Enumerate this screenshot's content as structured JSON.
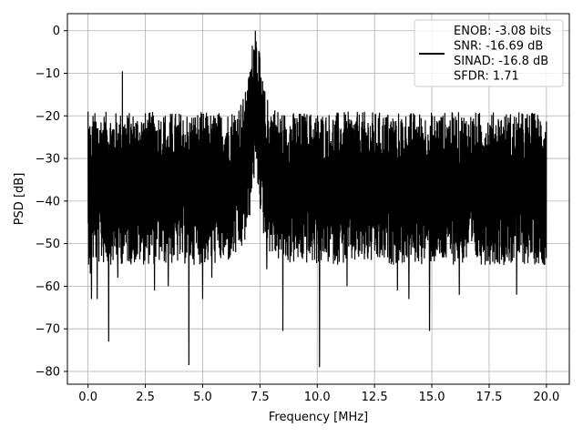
{
  "chart_data": {
    "type": "line",
    "title": "",
    "xlabel": "Frequency [MHz]",
    "ylabel": "PSD [dB]",
    "xlim": [
      -0.9,
      21.0
    ],
    "ylim": [
      -83.0,
      4.0
    ],
    "xticks": [
      0.0,
      2.5,
      5.0,
      7.5,
      10.0,
      12.5,
      15.0,
      17.5,
      20.0
    ],
    "xtick_labels": [
      "0.0",
      "2.5",
      "5.0",
      "7.5",
      "10.0",
      "12.5",
      "15.0",
      "17.5",
      "20.0"
    ],
    "yticks": [
      0,
      -10,
      -20,
      -30,
      -40,
      -50,
      -60,
      -70,
      -80
    ],
    "ytick_labels": [
      "0",
      "−10",
      "−20",
      "−30",
      "−40",
      "−50",
      "−60",
      "−70",
      "−80"
    ],
    "grid": true,
    "legend": {
      "placement": "top-right",
      "entries": [
        "ENOB: -3.08 bits",
        "SNR: -16.69 dB",
        "SINAD: -16.8 dB",
        "SFDR: 1.71"
      ]
    },
    "series": [
      {
        "color": "#000000",
        "x_range": [
          0.0,
          20.0
        ],
        "noise_floor_db": -37,
        "noise_high_db": -26,
        "noise_low_db": -50,
        "peaks": [
          {
            "x": 0.0,
            "y": -19
          },
          {
            "x": 1.5,
            "y": -9.5
          },
          {
            "x": 7.3,
            "y": 0
          },
          {
            "x": 6.9,
            "y": -16.5
          },
          {
            "x": 7.7,
            "y": -17
          }
        ],
        "dips": [
          {
            "x": 0.1,
            "y": -57
          },
          {
            "x": 0.15,
            "y": -63
          },
          {
            "x": 0.4,
            "y": -63
          },
          {
            "x": 0.9,
            "y": -73
          },
          {
            "x": 1.3,
            "y": -58
          },
          {
            "x": 2.9,
            "y": -61
          },
          {
            "x": 3.5,
            "y": -60
          },
          {
            "x": 4.4,
            "y": -78.5
          },
          {
            "x": 5.0,
            "y": -63
          },
          {
            "x": 5.4,
            "y": -58
          },
          {
            "x": 7.8,
            "y": -56
          },
          {
            "x": 8.5,
            "y": -70.5
          },
          {
            "x": 10.1,
            "y": -79
          },
          {
            "x": 11.3,
            "y": -60
          },
          {
            "x": 13.5,
            "y": -61
          },
          {
            "x": 14.0,
            "y": -63
          },
          {
            "x": 14.9,
            "y": -70.5
          },
          {
            "x": 16.2,
            "y": -62
          },
          {
            "x": 18.7,
            "y": -62
          },
          {
            "x": 19.9,
            "y": -55
          }
        ]
      }
    ]
  }
}
